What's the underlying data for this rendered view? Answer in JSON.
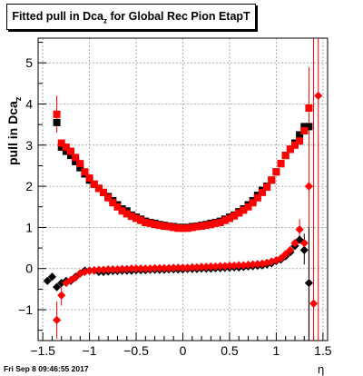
{
  "title_prefix": "Fitted pull in Dca",
  "title_sub": "z",
  "title_suffix": " for Global Rec Pion EtapT",
  "ylabel_main": "pull in Dca",
  "ylabel_sub": "z",
  "xlabel": "η",
  "footer": "Fri Sep  8 09:46:55 2017",
  "colors": {
    "series_black": "#000000",
    "series_red": "#ff0000",
    "grid": "#999999"
  },
  "chart_data": {
    "type": "scatter",
    "title": "Fitted pull in Dca_z for Global Rec Pion EtapT",
    "xlabel": "η",
    "ylabel": "pull in Dca_z",
    "xlim": [
      -1.55,
      1.55
    ],
    "ylim": [
      -1.75,
      5.6
    ],
    "x_ticks": [
      -1.5,
      -1,
      -0.5,
      0,
      0.5,
      1,
      1.5
    ],
    "x_tick_labels": [
      "−1.5",
      "−1",
      "−0.5",
      "0",
      "0.5",
      "1",
      "1.5"
    ],
    "y_ticks": [
      -1,
      0,
      1,
      2,
      3,
      4,
      5
    ],
    "y_tick_labels": [
      "−1",
      "0",
      "1",
      "2",
      "3",
      "4",
      "5"
    ],
    "grid": true,
    "series": [
      {
        "marker": "square",
        "color": "#000000",
        "role": "width",
        "points": [
          [
            -1.35,
            3.55
          ],
          [
            -1.3,
            2.95
          ],
          [
            -1.25,
            2.85
          ],
          [
            -1.2,
            2.75
          ],
          [
            -1.15,
            2.6
          ],
          [
            -1.1,
            2.45
          ],
          [
            -1.05,
            2.3
          ],
          [
            -1.0,
            2.15
          ],
          [
            -0.95,
            2.05
          ],
          [
            -0.9,
            1.95
          ],
          [
            -0.85,
            1.85
          ],
          [
            -0.8,
            1.75
          ],
          [
            -0.75,
            1.65
          ],
          [
            -0.7,
            1.55
          ],
          [
            -0.65,
            1.45
          ],
          [
            -0.6,
            1.4
          ],
          [
            -0.55,
            1.3
          ],
          [
            -0.5,
            1.25
          ],
          [
            -0.45,
            1.2
          ],
          [
            -0.4,
            1.15
          ],
          [
            -0.35,
            1.12
          ],
          [
            -0.3,
            1.1
          ],
          [
            -0.25,
            1.07
          ],
          [
            -0.2,
            1.05
          ],
          [
            -0.15,
            1.03
          ],
          [
            -0.1,
            1.02
          ],
          [
            -0.05,
            1.0
          ],
          [
            0.0,
            1.0
          ],
          [
            0.05,
            1.0
          ],
          [
            0.1,
            1.02
          ],
          [
            0.15,
            1.03
          ],
          [
            0.2,
            1.05
          ],
          [
            0.25,
            1.07
          ],
          [
            0.3,
            1.1
          ],
          [
            0.35,
            1.12
          ],
          [
            0.4,
            1.15
          ],
          [
            0.45,
            1.2
          ],
          [
            0.5,
            1.25
          ],
          [
            0.55,
            1.3
          ],
          [
            0.6,
            1.38
          ],
          [
            0.65,
            1.45
          ],
          [
            0.7,
            1.55
          ],
          [
            0.75,
            1.65
          ],
          [
            0.8,
            1.78
          ],
          [
            0.85,
            1.9
          ],
          [
            0.9,
            2.0
          ],
          [
            0.95,
            2.15
          ],
          [
            1.0,
            2.35
          ],
          [
            1.05,
            2.55
          ],
          [
            1.1,
            2.75
          ],
          [
            1.15,
            2.9
          ],
          [
            1.2,
            3.05
          ],
          [
            1.25,
            3.25
          ],
          [
            1.3,
            3.45
          ],
          [
            1.35,
            3.45
          ]
        ]
      },
      {
        "marker": "square",
        "color": "#ff0000",
        "role": "width",
        "points": [
          [
            -1.35,
            3.75
          ],
          [
            -1.3,
            3.05
          ],
          [
            -1.25,
            2.95
          ],
          [
            -1.2,
            2.85
          ],
          [
            -1.15,
            2.7
          ],
          [
            -1.1,
            2.55
          ],
          [
            -1.05,
            2.35
          ],
          [
            -1.0,
            2.2
          ],
          [
            -0.95,
            2.05
          ],
          [
            -0.9,
            1.95
          ],
          [
            -0.85,
            1.85
          ],
          [
            -0.8,
            1.72
          ],
          [
            -0.75,
            1.6
          ],
          [
            -0.7,
            1.5
          ],
          [
            -0.65,
            1.4
          ],
          [
            -0.6,
            1.33
          ],
          [
            -0.55,
            1.27
          ],
          [
            -0.5,
            1.22
          ],
          [
            -0.45,
            1.17
          ],
          [
            -0.4,
            1.12
          ],
          [
            -0.35,
            1.1
          ],
          [
            -0.3,
            1.07
          ],
          [
            -0.25,
            1.05
          ],
          [
            -0.2,
            1.03
          ],
          [
            -0.15,
            1.02
          ],
          [
            -0.1,
            1.0
          ],
          [
            -0.05,
            0.98
          ],
          [
            0.0,
            0.98
          ],
          [
            0.05,
            0.98
          ],
          [
            0.1,
            1.0
          ],
          [
            0.15,
            1.02
          ],
          [
            0.2,
            1.03
          ],
          [
            0.25,
            1.05
          ],
          [
            0.3,
            1.07
          ],
          [
            0.35,
            1.1
          ],
          [
            0.4,
            1.12
          ],
          [
            0.45,
            1.17
          ],
          [
            0.5,
            1.22
          ],
          [
            0.55,
            1.28
          ],
          [
            0.6,
            1.35
          ],
          [
            0.65,
            1.42
          ],
          [
            0.7,
            1.5
          ],
          [
            0.75,
            1.6
          ],
          [
            0.8,
            1.72
          ],
          [
            0.85,
            1.85
          ],
          [
            0.9,
            1.98
          ],
          [
            0.95,
            2.15
          ],
          [
            1.0,
            2.35
          ],
          [
            1.05,
            2.55
          ],
          [
            1.1,
            2.75
          ],
          [
            1.15,
            2.9
          ],
          [
            1.2,
            3.0
          ],
          [
            1.25,
            3.1
          ],
          [
            1.3,
            3.35
          ],
          [
            1.35,
            3.9
          ]
        ]
      },
      {
        "marker": "diamond",
        "color": "#000000",
        "role": "mean",
        "points": [
          [
            -1.45,
            -0.3
          ],
          [
            -1.4,
            -0.2
          ],
          [
            -1.35,
            -0.45
          ],
          [
            -1.3,
            -0.35
          ],
          [
            -1.25,
            -0.3
          ],
          [
            -1.2,
            -0.3
          ],
          [
            -1.15,
            -0.2
          ],
          [
            -1.1,
            -0.12
          ],
          [
            -1.05,
            -0.05
          ],
          [
            -1.0,
            -0.05
          ],
          [
            -0.95,
            -0.05
          ],
          [
            -0.9,
            -0.08
          ],
          [
            -0.85,
            -0.08
          ],
          [
            -0.8,
            -0.07
          ],
          [
            -0.75,
            -0.06
          ],
          [
            -0.7,
            -0.06
          ],
          [
            -0.65,
            -0.05
          ],
          [
            -0.6,
            -0.05
          ],
          [
            -0.55,
            -0.05
          ],
          [
            -0.5,
            -0.04
          ],
          [
            -0.45,
            -0.04
          ],
          [
            -0.4,
            -0.04
          ],
          [
            -0.35,
            -0.03
          ],
          [
            -0.3,
            -0.03
          ],
          [
            -0.25,
            -0.03
          ],
          [
            -0.2,
            -0.03
          ],
          [
            -0.15,
            -0.02
          ],
          [
            -0.1,
            -0.02
          ],
          [
            -0.05,
            -0.02
          ],
          [
            0.0,
            -0.02
          ],
          [
            0.05,
            -0.01
          ],
          [
            0.1,
            -0.01
          ],
          [
            0.15,
            -0.01
          ],
          [
            0.2,
            0.0
          ],
          [
            0.25,
            0.0
          ],
          [
            0.3,
            0.0
          ],
          [
            0.35,
            0.01
          ],
          [
            0.4,
            0.01
          ],
          [
            0.45,
            0.02
          ],
          [
            0.5,
            0.02
          ],
          [
            0.55,
            0.03
          ],
          [
            0.6,
            0.03
          ],
          [
            0.65,
            0.04
          ],
          [
            0.7,
            0.05
          ],
          [
            0.75,
            0.06
          ],
          [
            0.8,
            0.07
          ],
          [
            0.85,
            0.08
          ],
          [
            0.9,
            0.1
          ],
          [
            0.95,
            0.13
          ],
          [
            1.0,
            0.18
          ],
          [
            1.05,
            0.22
          ],
          [
            1.1,
            0.3
          ],
          [
            1.15,
            0.4
          ],
          [
            1.2,
            0.55
          ],
          [
            1.25,
            0.7
          ],
          [
            1.3,
            0.45
          ],
          [
            1.35,
            -0.35
          ]
        ]
      },
      {
        "marker": "diamond",
        "color": "#ff0000",
        "role": "mean",
        "points": [
          [
            -1.35,
            -1.25
          ],
          [
            -1.3,
            -0.65
          ],
          [
            -1.25,
            -0.35
          ],
          [
            -1.2,
            -0.28
          ],
          [
            -1.15,
            -0.22
          ],
          [
            -1.1,
            -0.12
          ],
          [
            -1.05,
            -0.08
          ],
          [
            -1.0,
            -0.06
          ],
          [
            -0.95,
            -0.04
          ],
          [
            -0.9,
            -0.03
          ],
          [
            -0.85,
            -0.03
          ],
          [
            -0.8,
            -0.02
          ],
          [
            -0.75,
            -0.02
          ],
          [
            -0.7,
            -0.02
          ],
          [
            -0.65,
            -0.01
          ],
          [
            -0.6,
            -0.01
          ],
          [
            -0.55,
            0.0
          ],
          [
            -0.5,
            0.0
          ],
          [
            -0.45,
            0.0
          ],
          [
            -0.4,
            0.0
          ],
          [
            -0.35,
            0.0
          ],
          [
            -0.3,
            0.01
          ],
          [
            -0.25,
            0.01
          ],
          [
            -0.2,
            0.01
          ],
          [
            -0.15,
            0.01
          ],
          [
            -0.1,
            0.02
          ],
          [
            -0.05,
            0.02
          ],
          [
            0.0,
            0.02
          ],
          [
            0.05,
            0.02
          ],
          [
            0.1,
            0.03
          ],
          [
            0.15,
            0.03
          ],
          [
            0.2,
            0.04
          ],
          [
            0.25,
            0.04
          ],
          [
            0.3,
            0.05
          ],
          [
            0.35,
            0.05
          ],
          [
            0.4,
            0.06
          ],
          [
            0.45,
            0.06
          ],
          [
            0.5,
            0.07
          ],
          [
            0.55,
            0.07
          ],
          [
            0.6,
            0.08
          ],
          [
            0.65,
            0.08
          ],
          [
            0.7,
            0.09
          ],
          [
            0.75,
            0.1
          ],
          [
            0.8,
            0.11
          ],
          [
            0.85,
            0.12
          ],
          [
            0.9,
            0.14
          ],
          [
            0.95,
            0.17
          ],
          [
            1.0,
            0.2
          ],
          [
            1.05,
            0.25
          ],
          [
            1.1,
            0.35
          ],
          [
            1.15,
            0.45
          ],
          [
            1.2,
            0.62
          ],
          [
            1.25,
            0.95
          ],
          [
            1.3,
            0.62
          ],
          [
            1.35,
            2.0
          ],
          [
            1.4,
            -0.85
          ],
          [
            1.45,
            4.2
          ]
        ]
      }
    ]
  }
}
